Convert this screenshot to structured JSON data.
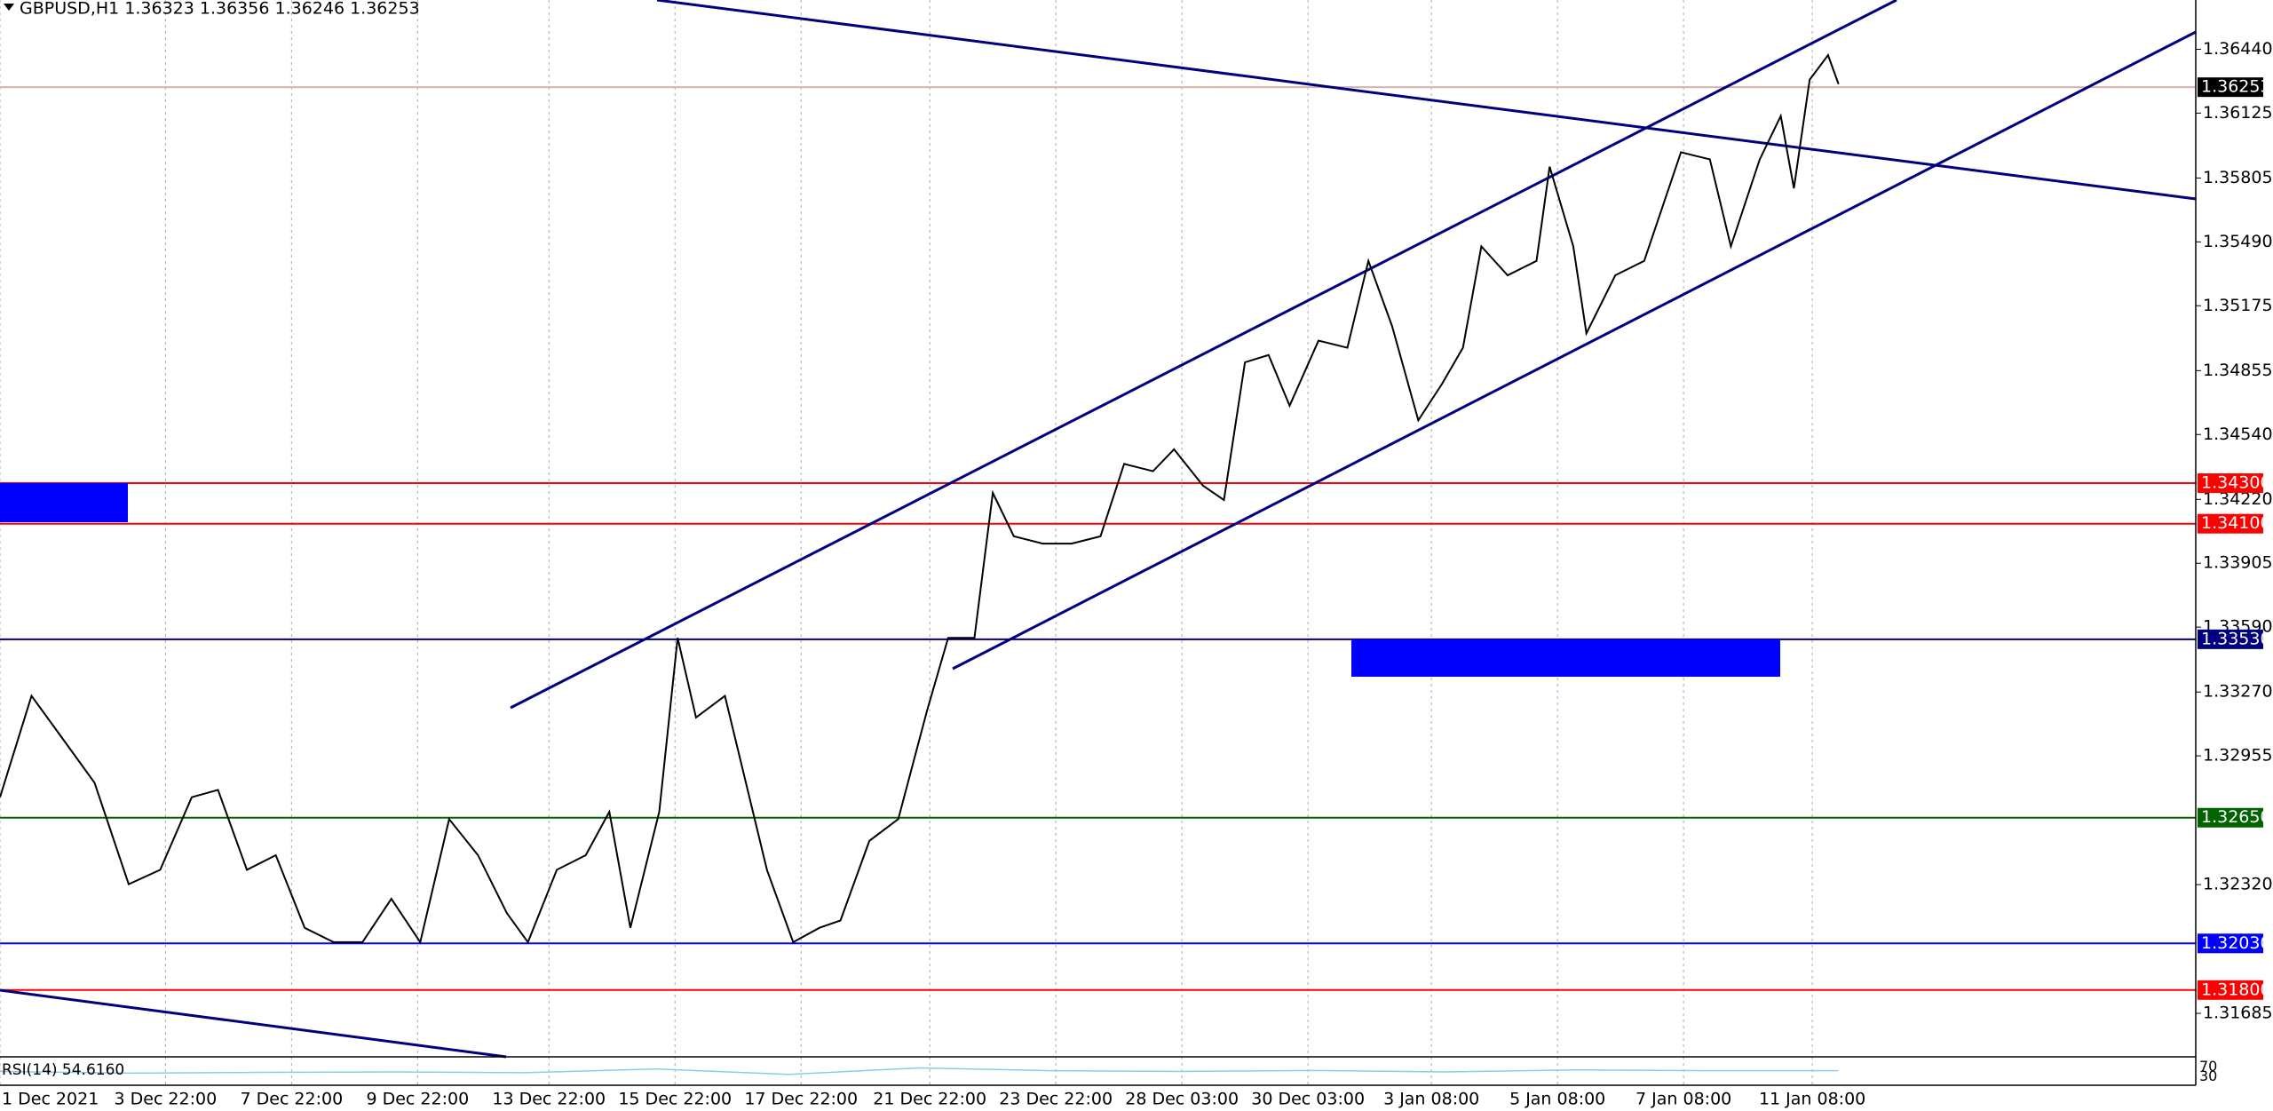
{
  "chart_data": {
    "type": "line",
    "header": "GBPUSD,H1  1.36323 1.36356 1.36246 1.36253",
    "x": [
      0,
      12,
      24,
      36,
      49,
      61,
      73,
      83,
      94,
      105,
      116,
      127,
      138,
      149,
      160,
      171,
      182,
      193,
      201,
      212,
      223,
      232,
      240,
      251,
      258,
      265,
      276,
      284,
      292,
      302,
      312,
      320,
      331,
      342,
      353,
      361,
      371,
      378,
      386,
      397,
      408,
      419,
      428,
      439,
      447,
      458,
      466,
      474,
      483,
      491,
      502,
      513,
      521,
      530,
      540,
      549,
      557,
      564,
      574,
      585,
      590,
      599,
      604,
      615,
      626,
      640,
      651,
      659,
      670,
      678,
      683,
      689,
      696,
      700
    ],
    "series": [
      {
        "color": "#000000",
        "values": [
          1.32751,
          1.33251,
          1.33037,
          1.32822,
          1.32322,
          1.32393,
          1.32751,
          1.32787,
          1.32393,
          1.32465,
          1.32107,
          1.32036,
          1.32036,
          1.3225,
          1.32036,
          1.32643,
          1.32465,
          1.32179,
          1.32036,
          1.32393,
          1.32465,
          1.32679,
          1.32107,
          1.32679,
          1.33537,
          1.33144,
          1.33251,
          1.32822,
          1.32393,
          1.32036,
          1.32107,
          1.32143,
          1.32536,
          1.32643,
          1.3318,
          1.33537,
          1.33537,
          1.34252,
          1.34038,
          1.34002,
          1.34002,
          1.34038,
          1.34395,
          1.34359,
          1.34467,
          1.34288,
          1.34217,
          1.34896,
          1.34932,
          1.34682,
          1.35003,
          1.34968,
          1.35396,
          1.35075,
          1.3461,
          1.34789,
          1.34968,
          1.35468,
          1.35325,
          1.35396,
          1.35861,
          1.35468,
          1.35039,
          1.35325,
          1.35396,
          1.35932,
          1.35897,
          1.35468,
          1.35897,
          1.36111,
          1.35754,
          1.3629,
          1.36411,
          1.36268
        ]
      }
    ],
    "xlim": [
      0,
      836
    ],
    "ylim": [
      1.31475,
      1.36683
    ],
    "yticks": [
      {
        "value": 1.3644,
        "label": "1.36440"
      },
      {
        "value": 1.36125,
        "label": "1.36125"
      },
      {
        "value": 1.35805,
        "label": "1.35805"
      },
      {
        "value": 1.3549,
        "label": "1.35490"
      },
      {
        "value": 1.35175,
        "label": "1.35175"
      },
      {
        "value": 1.34855,
        "label": "1.34855"
      },
      {
        "value": 1.3454,
        "label": "1.34540"
      },
      {
        "value": 1.3422,
        "label": "1.34220"
      },
      {
        "value": 1.33905,
        "label": "1.33905"
      },
      {
        "value": 1.3359,
        "label": "1.33590"
      },
      {
        "value": 1.3327,
        "label": "1.33270"
      },
      {
        "value": 1.32955,
        "label": "1.32955"
      },
      {
        "value": 1.3232,
        "label": "1.32320"
      },
      {
        "value": 1.31685,
        "label": "1.31685"
      }
    ],
    "xticks": [
      {
        "value": 0,
        "label": "1 Dec 2021"
      },
      {
        "value": 63,
        "label": "3 Dec 22:00"
      },
      {
        "value": 111,
        "label": "7 Dec 22:00"
      },
      {
        "value": 159,
        "label": "9 Dec 22:00"
      },
      {
        "value": 209,
        "label": "13 Dec 22:00"
      },
      {
        "value": 257,
        "label": "15 Dec 22:00"
      },
      {
        "value": 305,
        "label": "17 Dec 22:00"
      },
      {
        "value": 354,
        "label": "21 Dec 22:00"
      },
      {
        "value": 402,
        "label": "23 Dec 22:00"
      },
      {
        "value": 450,
        "label": "28 Dec 03:00"
      },
      {
        "value": 498,
        "label": "30 Dec 03:00"
      },
      {
        "value": 545,
        "label": "3 Jan 08:00"
      },
      {
        "value": 593,
        "label": "5 Jan 08:00"
      },
      {
        "value": 641,
        "label": "7 Jan 08:00"
      },
      {
        "value": 690,
        "label": "11 Jan 08:00"
      }
    ],
    "levels": [
      {
        "value": 1.36253,
        "label": "1.36253",
        "color": "#000000",
        "line_color": "#d8b0a8"
      },
      {
        "value": 1.343,
        "label": "1.34300",
        "color": "#ff0000",
        "line_color": "#ff0000"
      },
      {
        "value": 1.341,
        "label": "1.34100",
        "color": "#ff0000",
        "line_color": "#ff0000"
      },
      {
        "value": 1.3353,
        "label": "1.33530",
        "color": "#000080",
        "line_color": "#000080"
      },
      {
        "value": 1.3265,
        "label": "1.32650",
        "color": "#006400",
        "line_color": "#006400"
      },
      {
        "value": 1.3203,
        "label": "1.32030",
        "color": "#0000ff",
        "line_color": "#0000ff"
      },
      {
        "value": 1.318,
        "label": "1.31800",
        "color": "#ff0000",
        "line_color": "#ff0000"
      }
    ],
    "rsi": {
      "label": "RSI(14) 54.6160",
      "color": "#87ceeb",
      "x": [
        0,
        50,
        100,
        150,
        200,
        250,
        300,
        350,
        400,
        450,
        500,
        550,
        600,
        650,
        700
      ],
      "values": [
        52,
        45,
        48,
        50,
        47,
        62,
        40,
        66,
        55,
        52,
        56,
        50,
        58,
        55,
        55
      ],
      "ylim": [
        0,
        100
      ],
      "yticks": [
        70,
        30
      ]
    }
  }
}
